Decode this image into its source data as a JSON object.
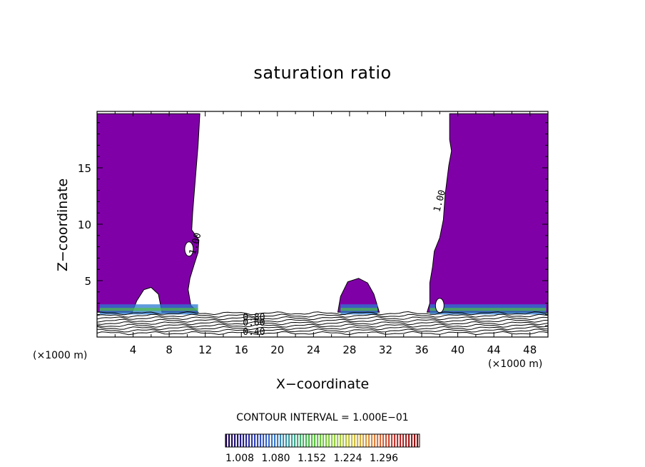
{
  "chart_data": {
    "type": "contour",
    "title": "saturation ratio",
    "xlabel": "X−coordinate",
    "ylabel": "Z−coordinate",
    "x_unit_label": "(×1000 m)",
    "z_unit_label": "(×1000 m)",
    "xlim": [
      0,
      50
    ],
    "ylim": [
      0,
      20
    ],
    "x_ticks": [
      4,
      8,
      12,
      16,
      20,
      24,
      28,
      32,
      36,
      40,
      44,
      48
    ],
    "x_tick_labels": [
      "4",
      "8",
      "12",
      "16",
      "20",
      "24",
      "28",
      "32",
      "36",
      "40",
      "44",
      "48"
    ],
    "y_ticks": [
      5,
      10,
      15
    ],
    "y_tick_labels": [
      "5",
      "10",
      "15"
    ],
    "contour_labels": [
      {
        "text": "1.00",
        "x": 11.2,
        "z": 8.2
      },
      {
        "text": "1.00",
        "x": 38.3,
        "z": 12.0
      },
      {
        "text": "0.80",
        "x": 17.4,
        "z": 1.5
      },
      {
        "text": "0.60",
        "x": 17.4,
        "z": 1.0
      },
      {
        "text": "0.40",
        "x": 17.4,
        "z": 0.2
      }
    ],
    "saturated_regions": [
      {
        "name": "left",
        "outline": [
          [
            0,
            2.2
          ],
          [
            0,
            19.8
          ],
          [
            11.4,
            19.8
          ],
          [
            11.2,
            17
          ],
          [
            10.8,
            13
          ],
          [
            10.6,
            11
          ],
          [
            10.5,
            9.5
          ],
          [
            11.3,
            8.6
          ],
          [
            11.2,
            7.5
          ],
          [
            10.8,
            6.5
          ],
          [
            10.3,
            5.2
          ],
          [
            10.1,
            4.2
          ],
          [
            10.4,
            2.8
          ],
          [
            11.2,
            2.2
          ],
          [
            7.2,
            2.2
          ],
          [
            6.8,
            3.8
          ],
          [
            6.0,
            4.4
          ],
          [
            5.2,
            4.2
          ],
          [
            4.4,
            3.2
          ],
          [
            3.9,
            2.2
          ]
        ]
      },
      {
        "name": "center-bubble",
        "outline": [
          [
            26.7,
            2.2
          ],
          [
            27.0,
            3.6
          ],
          [
            27.8,
            4.9
          ],
          [
            29.0,
            5.2
          ],
          [
            30.0,
            4.8
          ],
          [
            30.7,
            3.8
          ],
          [
            31.3,
            2.2
          ]
        ]
      },
      {
        "name": "right",
        "outline": [
          [
            36.6,
            2.2
          ],
          [
            36.9,
            3.0
          ],
          [
            36.9,
            4.8
          ],
          [
            37.2,
            6.2
          ],
          [
            37.4,
            7.6
          ],
          [
            38.0,
            8.8
          ],
          [
            38.4,
            10.4
          ],
          [
            38.6,
            12.6
          ],
          [
            39.0,
            15.2
          ],
          [
            39.3,
            16.5
          ],
          [
            39.1,
            17.5
          ],
          [
            39.1,
            19.8
          ],
          [
            50,
            19.8
          ],
          [
            50,
            2.2
          ]
        ]
      }
    ],
    "holes": [
      {
        "name": "left-hole",
        "x": 10.2,
        "z": 7.8
      },
      {
        "name": "right-hole",
        "x": 38.0,
        "z": 2.8
      }
    ],
    "contour_interval_text": "CONTOUR INTERVAL = 1.000E−01",
    "colorbar": {
      "colors": [
        "#1a0050",
        "#2a2aa0",
        "#3a6ad0",
        "#3aa0a0",
        "#50c040",
        "#90d040",
        "#d0c040",
        "#e08040",
        "#c03030",
        "#901010"
      ],
      "tick_labels": [
        "1.008",
        "1.080",
        "1.152",
        "1.224",
        "1.296"
      ]
    },
    "colors": {
      "saturated_fill": "#8000a8",
      "axis": "#000000"
    }
  }
}
